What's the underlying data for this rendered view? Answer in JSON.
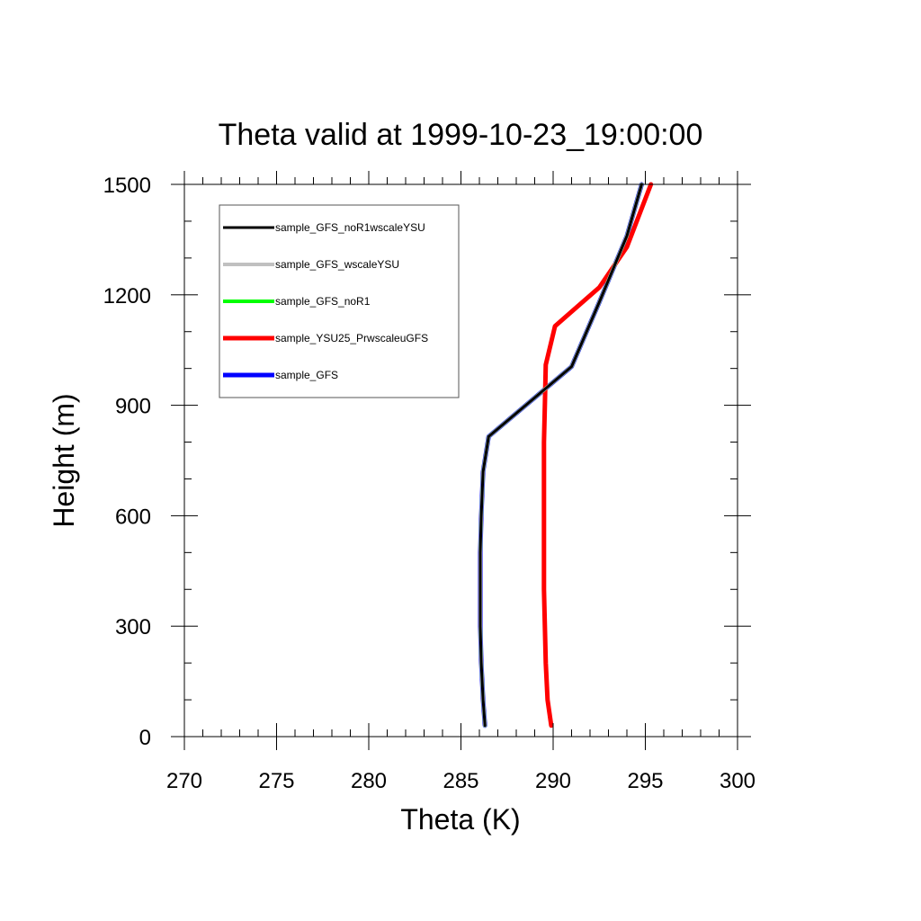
{
  "chart_data": {
    "type": "line",
    "title": "Theta valid at 1999-10-23_19:00:00",
    "xlabel": "Theta (K)",
    "ylabel": "Height (m)",
    "xlim": [
      270,
      300
    ],
    "ylim": [
      0,
      1500
    ],
    "x_ticks": [
      270,
      275,
      280,
      285,
      290,
      295,
      300
    ],
    "y_ticks": [
      0,
      300,
      600,
      900,
      1200,
      1500
    ],
    "legend_placement": "top-left",
    "grid": false,
    "series": [
      {
        "name": "sample_GFS_noR1wscaleYSU",
        "color": "#000000",
        "points": [
          [
            286.3,
            30
          ],
          [
            286.2,
            100
          ],
          [
            286.1,
            200
          ],
          [
            286.05,
            300
          ],
          [
            286.05,
            400
          ],
          [
            286.05,
            500
          ],
          [
            286.1,
            600
          ],
          [
            286.2,
            720
          ],
          [
            286.5,
            815
          ],
          [
            291,
            1005
          ],
          [
            292.5,
            1180
          ],
          [
            294,
            1360
          ],
          [
            294.8,
            1500
          ]
        ]
      },
      {
        "name": "sample_GFS_wscaleYSU",
        "color": "#c0c0c0",
        "points": [
          [
            286.3,
            30
          ],
          [
            286.2,
            100
          ],
          [
            286.1,
            200
          ],
          [
            286.05,
            300
          ],
          [
            286.05,
            400
          ],
          [
            286.05,
            500
          ],
          [
            286.1,
            600
          ],
          [
            286.2,
            720
          ],
          [
            286.5,
            815
          ],
          [
            291,
            1005
          ],
          [
            292.5,
            1180
          ],
          [
            294,
            1360
          ],
          [
            294.8,
            1500
          ]
        ]
      },
      {
        "name": "sample_GFS_noR1",
        "color": "#00ff00",
        "points": [
          [
            286.3,
            30
          ],
          [
            286.2,
            100
          ],
          [
            286.1,
            200
          ],
          [
            286.05,
            300
          ],
          [
            286.05,
            400
          ],
          [
            286.05,
            500
          ],
          [
            286.1,
            600
          ],
          [
            286.2,
            720
          ],
          [
            286.5,
            815
          ],
          [
            291,
            1005
          ],
          [
            292.5,
            1180
          ],
          [
            294,
            1360
          ],
          [
            294.8,
            1500
          ]
        ]
      },
      {
        "name": "sample_YSU25_PrwscaleuGFS",
        "color": "#ff0000",
        "points": [
          [
            289.9,
            30
          ],
          [
            289.7,
            100
          ],
          [
            289.6,
            200
          ],
          [
            289.55,
            300
          ],
          [
            289.5,
            400
          ],
          [
            289.5,
            500
          ],
          [
            289.5,
            600
          ],
          [
            289.5,
            700
          ],
          [
            289.5,
            800
          ],
          [
            289.55,
            900
          ],
          [
            289.6,
            1010
          ],
          [
            290.1,
            1115
          ],
          [
            292.5,
            1220
          ],
          [
            294,
            1330
          ],
          [
            295.3,
            1500
          ]
        ]
      },
      {
        "name": "sample_GFS",
        "color": "#0000ff",
        "points": [
          [
            286.3,
            30
          ],
          [
            286.2,
            100
          ],
          [
            286.1,
            200
          ],
          [
            286.05,
            300
          ],
          [
            286.05,
            400
          ],
          [
            286.05,
            500
          ],
          [
            286.1,
            600
          ],
          [
            286.2,
            720
          ],
          [
            286.5,
            815
          ],
          [
            291,
            1005
          ],
          [
            292.5,
            1180
          ],
          [
            294,
            1360
          ],
          [
            294.8,
            1500
          ]
        ]
      }
    ]
  }
}
